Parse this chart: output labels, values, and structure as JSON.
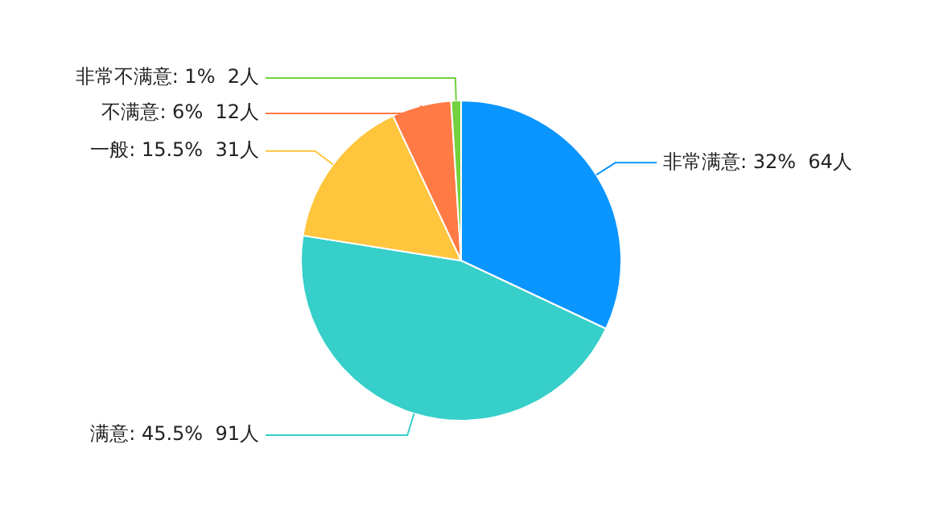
{
  "chart_data": {
    "type": "pie",
    "categories": [
      "非常满意",
      "满意",
      "一般",
      "不满意",
      "非常不满意"
    ],
    "values": [
      64,
      91,
      31,
      12,
      2
    ],
    "value_labels": [
      ": 32%  64人",
      ": 45.5%  91人",
      ": 15.5%  31人",
      ": 6%  12人",
      ": 1%  2人"
    ],
    "colors": [
      "#0a95ff",
      "#36cfc9",
      "#ffc53d",
      "#ff7a45",
      "#73d13d"
    ],
    "legend": false
  }
}
